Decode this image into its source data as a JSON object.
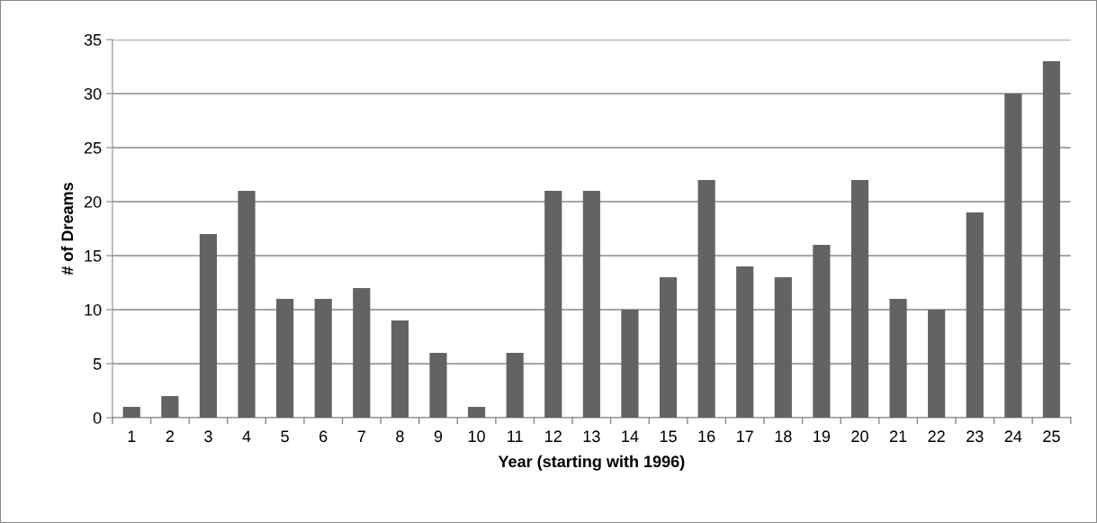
{
  "chart_data": {
    "type": "bar",
    "xlabel": "Year (starting with 1996)",
    "ylabel": "# of Dreams",
    "categories": [
      "1",
      "2",
      "3",
      "4",
      "5",
      "6",
      "7",
      "8",
      "9",
      "10",
      "11",
      "12",
      "13",
      "14",
      "15",
      "16",
      "17",
      "18",
      "19",
      "20",
      "21",
      "22",
      "23",
      "24",
      "25"
    ],
    "values": [
      1,
      2,
      17,
      21,
      11,
      11,
      12,
      9,
      6,
      1,
      6,
      21,
      21,
      10,
      13,
      22,
      14,
      13,
      16,
      22,
      11,
      10,
      19,
      30,
      33
    ],
    "color": "#636363",
    "ylim": [
      0,
      35
    ],
    "yticks": [
      0,
      5,
      10,
      15,
      20,
      25,
      30,
      35
    ],
    "grid": "y",
    "legend": false
  }
}
